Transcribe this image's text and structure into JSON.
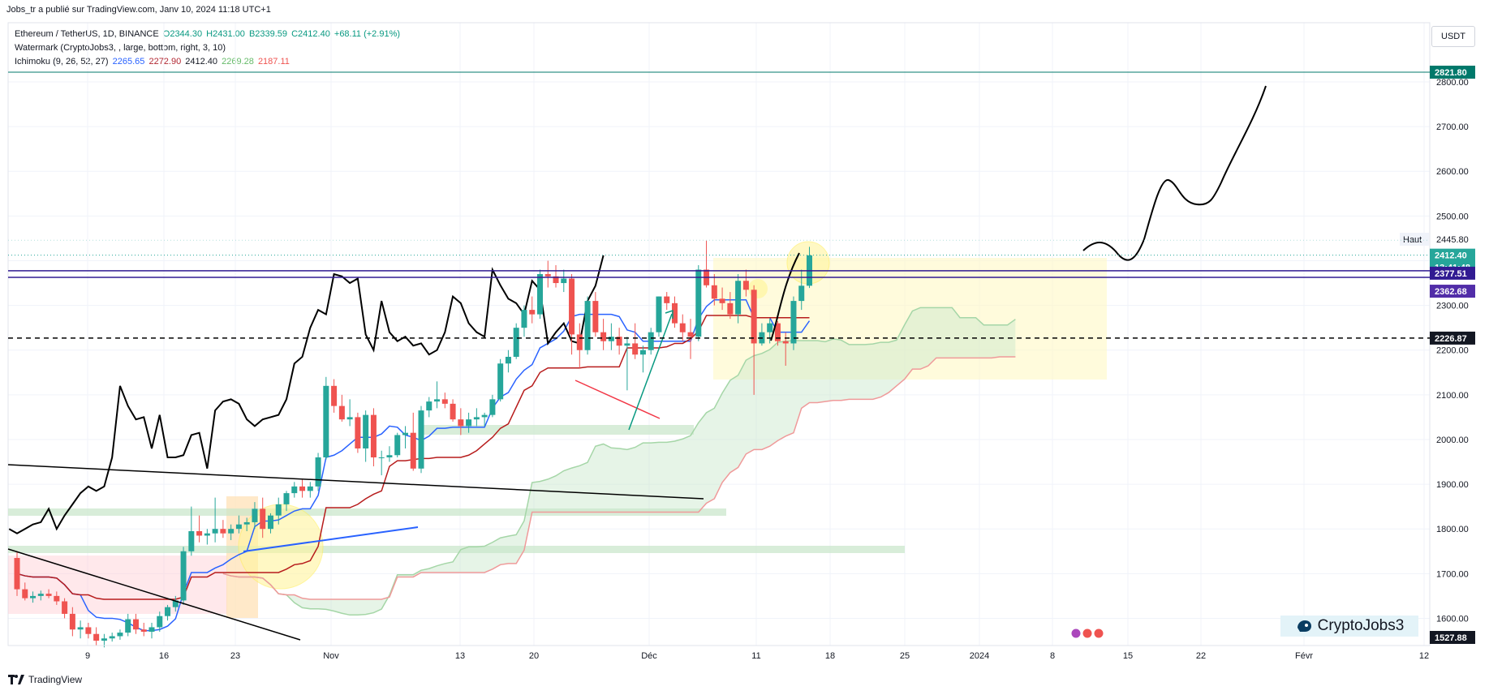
{
  "header": {
    "attribution": "Jobs_tr a publié sur TradingView.com, Janv 10, 2024 11:18 UTC+1"
  },
  "legend": {
    "symbol": "Ethereum / TetherUS, 1D, BINANCE",
    "ohlc": {
      "o": "O2344.30",
      "h": "H2431.00",
      "l": "B2339.59",
      "c": "C2412.40",
      "chg": "+68.11 (+2.91%)"
    },
    "watermark_line": "Watermark (CryptoJobs3, , large, bottom, right, 3, 10)",
    "ichimoku_label": "Ichimoku (9, 26, 52, 27)",
    "ichimoku_values": [
      "2265.65",
      "2272.90",
      "2412.40",
      "2269.28",
      "2187.11"
    ]
  },
  "currency": "USDT",
  "price_axis": {
    "ticks": [
      "2800.00",
      "2700.00",
      "2600.00",
      "2500.00",
      "2400.00",
      "2300.00",
      "2200.00",
      "2100.00",
      "2000.00",
      "1900.00",
      "1800.00",
      "1700.00",
      "1600.00"
    ],
    "haut_label": "Haut",
    "haut_value": "2445.80",
    "badges": {
      "top": "2821.80",
      "last": "2412.40",
      "countdown": "13:41:48",
      "purple1": "2377.51",
      "purple2": "2362.68",
      "dashed": "2226.87",
      "bottom": "1527.88"
    }
  },
  "time_axis": [
    "9",
    "16",
    "23",
    "Nov",
    "13",
    "20",
    "Déc",
    "11",
    "18",
    "25",
    "2024",
    "8",
    "15",
    "22",
    "Févr",
    "12"
  ],
  "watermark_text": "CryptoJobs3",
  "footer": "TradingView",
  "colors": {
    "up": "#26a69a",
    "down": "#ef5350",
    "tenkan": "#2962ff",
    "kijun": "#b71c1c",
    "span_a": "#a5d6a7",
    "span_b": "#ef9a9a",
    "purple": "#311b92",
    "teal_line": "#00796b"
  },
  "chart_data": {
    "type": "candlestick",
    "title": "Ethereum / TetherUS, 1D, BINANCE",
    "ylim": [
      1527.88,
      2890
    ],
    "x": [
      "2023-10-02",
      "2023-10-03",
      "2023-10-04",
      "2023-10-05",
      "2023-10-06",
      "2023-10-07",
      "2023-10-08",
      "2023-10-09",
      "2023-10-10",
      "2023-10-11",
      "2023-10-12",
      "2023-10-13",
      "2023-10-14",
      "2023-10-15",
      "2023-10-16",
      "2023-10-17",
      "2023-10-18",
      "2023-10-19",
      "2023-10-20",
      "2023-10-21",
      "2023-10-22",
      "2023-10-23",
      "2023-10-24",
      "2023-10-25",
      "2023-10-26",
      "2023-10-27",
      "2023-10-28",
      "2023-10-29",
      "2023-10-30",
      "2023-10-31",
      "2023-11-01",
      "2023-11-02",
      "2023-11-03",
      "2023-11-04",
      "2023-11-05",
      "2023-11-06",
      "2023-11-07",
      "2023-11-08",
      "2023-11-09",
      "2023-11-10",
      "2023-11-11",
      "2023-11-12",
      "2023-11-13",
      "2023-11-14",
      "2023-11-15",
      "2023-11-16",
      "2023-11-17",
      "2023-11-18",
      "2023-11-19",
      "2023-11-20",
      "2023-11-21",
      "2023-11-22",
      "2023-11-23",
      "2023-11-24",
      "2023-11-25",
      "2023-11-26",
      "2023-11-27",
      "2023-11-28",
      "2023-11-29",
      "2023-11-30",
      "2023-12-01",
      "2023-12-02",
      "2023-12-03",
      "2023-12-04",
      "2023-12-05",
      "2023-12-06",
      "2023-12-07",
      "2023-12-08",
      "2023-12-09",
      "2023-12-10",
      "2023-12-11",
      "2023-12-12",
      "2023-12-13",
      "2023-12-14",
      "2023-12-15",
      "2023-12-16",
      "2023-12-17",
      "2023-12-18",
      "2023-12-19",
      "2023-12-20",
      "2023-12-21",
      "2023-12-22",
      "2023-12-23",
      "2023-12-24",
      "2023-12-25",
      "2023-12-26",
      "2023-12-27",
      "2023-12-28",
      "2023-12-29",
      "2023-12-30",
      "2023-12-31",
      "2024-01-01",
      "2024-01-02",
      "2024-01-03",
      "2024-01-04",
      "2024-01-05",
      "2024-01-06",
      "2024-01-07",
      "2024-01-08",
      "2024-01-09",
      "2024-01-10"
    ],
    "candles": [
      [
        1735,
        1750,
        1650,
        1665
      ],
      [
        1665,
        1680,
        1640,
        1645
      ],
      [
        1645,
        1660,
        1635,
        1650
      ],
      [
        1650,
        1662,
        1640,
        1655
      ],
      [
        1655,
        1665,
        1645,
        1650
      ],
      [
        1650,
        1660,
        1630,
        1638
      ],
      [
        1638,
        1645,
        1600,
        1610
      ],
      [
        1610,
        1625,
        1560,
        1575
      ],
      [
        1575,
        1595,
        1555,
        1580
      ],
      [
        1580,
        1590,
        1555,
        1565
      ],
      [
        1565,
        1580,
        1540,
        1550
      ],
      [
        1550,
        1565,
        1535,
        1555
      ],
      [
        1555,
        1568,
        1548,
        1560
      ],
      [
        1560,
        1575,
        1552,
        1568
      ],
      [
        1568,
        1610,
        1560,
        1598
      ],
      [
        1598,
        1610,
        1565,
        1575
      ],
      [
        1575,
        1590,
        1560,
        1570
      ],
      [
        1570,
        1590,
        1555,
        1580
      ],
      [
        1580,
        1615,
        1570,
        1605
      ],
      [
        1605,
        1630,
        1595,
        1625
      ],
      [
        1625,
        1650,
        1615,
        1640
      ],
      [
        1640,
        1760,
        1630,
        1750
      ],
      [
        1750,
        1850,
        1740,
        1795
      ],
      [
        1795,
        1830,
        1770,
        1785
      ],
      [
        1785,
        1800,
        1765,
        1790
      ],
      [
        1790,
        1870,
        1770,
        1800
      ],
      [
        1800,
        1820,
        1780,
        1790
      ],
      [
        1790,
        1810,
        1775,
        1800
      ],
      [
        1800,
        1830,
        1790,
        1810
      ],
      [
        1810,
        1825,
        1795,
        1815
      ],
      [
        1815,
        1860,
        1800,
        1845
      ],
      [
        1845,
        1870,
        1780,
        1800
      ],
      [
        1800,
        1835,
        1790,
        1830
      ],
      [
        1830,
        1870,
        1810,
        1855
      ],
      [
        1855,
        1885,
        1840,
        1880
      ],
      [
        1880,
        1905,
        1870,
        1895
      ],
      [
        1895,
        1910,
        1870,
        1885
      ],
      [
        1885,
        1905,
        1870,
        1895
      ],
      [
        1895,
        1970,
        1885,
        1960
      ],
      [
        1960,
        2140,
        1955,
        2120
      ],
      [
        2120,
        2135,
        2060,
        2075
      ],
      [
        2075,
        2100,
        2040,
        2045
      ],
      [
        2045,
        2090,
        2030,
        2050
      ],
      [
        2050,
        2060,
        1970,
        1980
      ],
      [
        1980,
        2065,
        1950,
        2055
      ],
      [
        2055,
        2070,
        1940,
        1960
      ],
      [
        1960,
        1975,
        1920,
        1960
      ],
      [
        1960,
        1985,
        1950,
        1965
      ],
      [
        1965,
        2015,
        1960,
        2010
      ],
      [
        2010,
        2030,
        1980,
        2015
      ],
      [
        2015,
        2060,
        1930,
        1935
      ],
      [
        1935,
        2075,
        1925,
        2065
      ],
      [
        2065,
        2095,
        2050,
        2085
      ],
      [
        2085,
        2130,
        2070,
        2090
      ],
      [
        2090,
        2105,
        2070,
        2080
      ],
      [
        2080,
        2090,
        2040,
        2045
      ],
      [
        2045,
        2070,
        2010,
        2030
      ],
      [
        2030,
        2060,
        2015,
        2045
      ],
      [
        2045,
        2070,
        2030,
        2050
      ],
      [
        2050,
        2060,
        2030,
        2055
      ],
      [
        2055,
        2100,
        2050,
        2090
      ],
      [
        2090,
        2180,
        2085,
        2170
      ],
      [
        2170,
        2200,
        2150,
        2185
      ],
      [
        2185,
        2260,
        2180,
        2250
      ],
      [
        2250,
        2300,
        2230,
        2290
      ],
      [
        2290,
        2320,
        2260,
        2280
      ],
      [
        2280,
        2380,
        2270,
        2370
      ],
      [
        2370,
        2400,
        2340,
        2365
      ],
      [
        2365,
        2390,
        2340,
        2350
      ],
      [
        2350,
        2380,
        2330,
        2360
      ],
      [
        2360,
        2370,
        2190,
        2235
      ],
      [
        2235,
        2260,
        2160,
        2200
      ],
      [
        2200,
        2320,
        2190,
        2310
      ],
      [
        2310,
        2330,
        2230,
        2240
      ],
      [
        2240,
        2270,
        2200,
        2220
      ],
      [
        2220,
        2260,
        2200,
        2230
      ],
      [
        2230,
        2250,
        2190,
        2210
      ],
      [
        2210,
        2230,
        2110,
        2215
      ],
      [
        2215,
        2260,
        2180,
        2190
      ],
      [
        2190,
        2210,
        2150,
        2200
      ],
      [
        2200,
        2250,
        2190,
        2240
      ],
      [
        2240,
        2320,
        2230,
        2320
      ],
      [
        2320,
        2330,
        2290,
        2305
      ],
      [
        2305,
        2320,
        2250,
        2260
      ],
      [
        2260,
        2280,
        2220,
        2240
      ],
      [
        2240,
        2270,
        2180,
        2230
      ],
      [
        2230,
        2390,
        2220,
        2380
      ],
      [
        2380,
        2445,
        2340,
        2345
      ],
      [
        2345,
        2370,
        2300,
        2315
      ],
      [
        2315,
        2340,
        2290,
        2305
      ],
      [
        2305,
        2330,
        2270,
        2280
      ],
      [
        2280,
        2370,
        2260,
        2355
      ],
      [
        2355,
        2380,
        2320,
        2335
      ],
      [
        2335,
        2345,
        2100,
        2215
      ],
      [
        2215,
        2260,
        2210,
        2240
      ],
      [
        2240,
        2270,
        2215,
        2260
      ],
      [
        2260,
        2265,
        2210,
        2220
      ],
      [
        2220,
        2240,
        2165,
        2215
      ],
      [
        2215,
        2320,
        2200,
        2310
      ],
      [
        2310,
        2380,
        2290,
        2344
      ],
      [
        2344,
        2431,
        2339,
        2412
      ]
    ],
    "ichimoku": {
      "params": [
        9,
        26,
        52,
        27
      ],
      "last_values": {
        "tenkan": 2265.65,
        "kijun": 2272.9,
        "chikou": 2412.4,
        "span_a": 2269.28,
        "span_b": 2187.11
      }
    },
    "levels": [
      {
        "name": "top-line",
        "value": 2821.8
      },
      {
        "name": "purple-1",
        "value": 2377.51
      },
      {
        "name": "purple-2",
        "value": 2362.68
      },
      {
        "name": "dashed",
        "value": 2226.87
      },
      {
        "name": "low",
        "value": 1527.88
      }
    ]
  }
}
